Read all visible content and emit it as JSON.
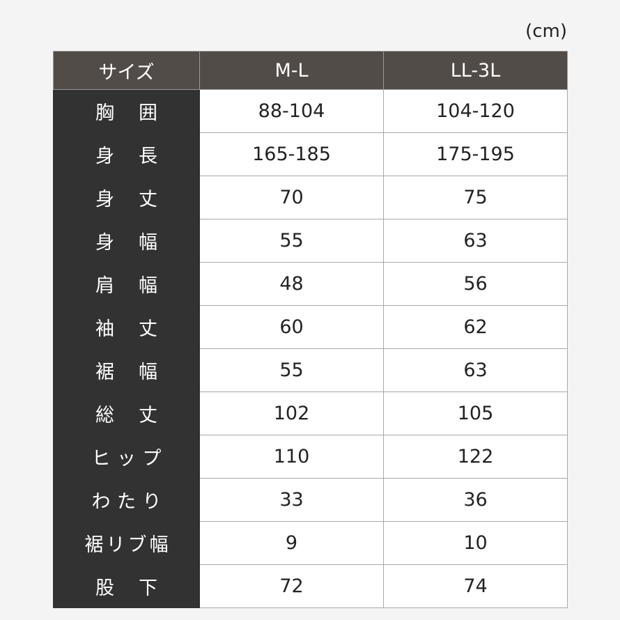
{
  "unit": "(cm)",
  "table": {
    "header": [
      "サイズ",
      "M-L",
      "LL-3L"
    ],
    "rows": [
      [
        "胸囲",
        "88-104",
        "104-120"
      ],
      [
        "身長",
        "165-185",
        "175-195"
      ],
      [
        "身丈",
        70,
        75
      ],
      [
        "身幅",
        55,
        63
      ],
      [
        "肩幅",
        48,
        56
      ],
      [
        "袖丈",
        60,
        62
      ],
      [
        "裾幅",
        55,
        63
      ],
      [
        "総丈",
        102,
        105
      ],
      [
        "ヒップ",
        110,
        122
      ],
      [
        "わたり",
        33,
        36
      ],
      [
        "裾リブ幅",
        9,
        10
      ],
      [
        "股下",
        72,
        74
      ]
    ]
  }
}
